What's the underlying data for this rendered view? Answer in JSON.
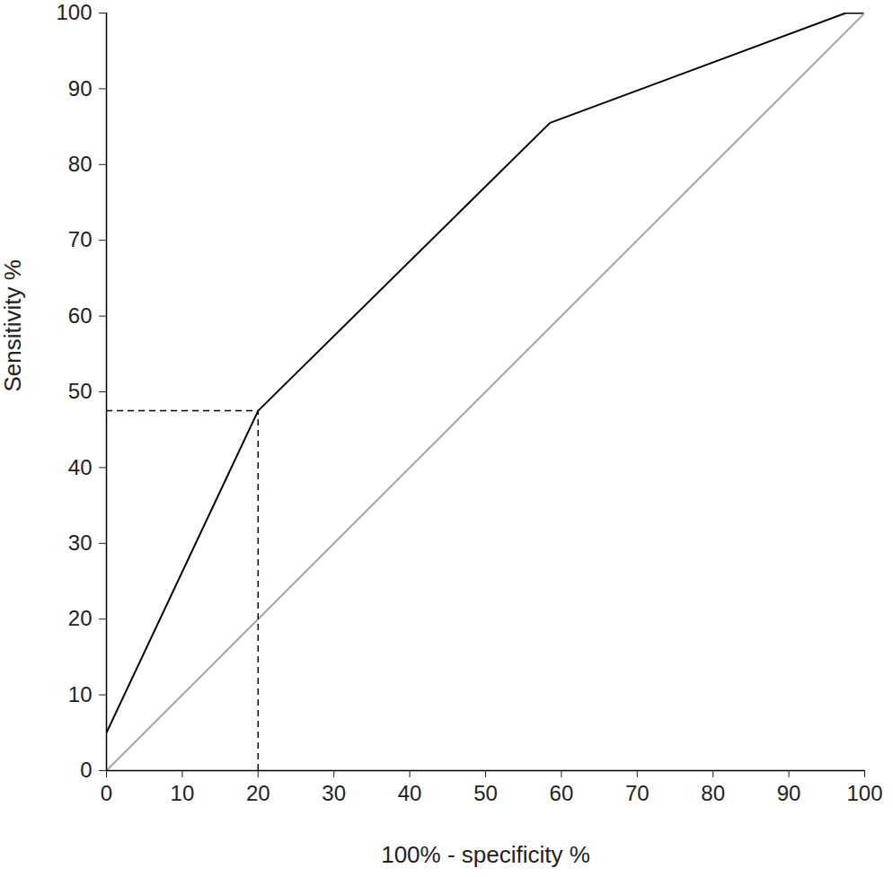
{
  "chart_data": {
    "type": "line",
    "xlabel": "100% - specificity %",
    "ylabel": "Sensitivity %",
    "xlim": [
      0,
      100
    ],
    "ylim": [
      0,
      100
    ],
    "xticks": [
      0,
      10,
      20,
      30,
      40,
      50,
      60,
      70,
      80,
      90,
      100
    ],
    "yticks": [
      0,
      10,
      20,
      30,
      40,
      50,
      60,
      70,
      80,
      90,
      100
    ],
    "grid": false,
    "series": [
      {
        "x": [
          0,
          20,
          58.5,
          97.5,
          100
        ],
        "values": [
          5,
          47.5,
          85.5,
          100,
          100
        ],
        "color": "#000000",
        "line_style": "solid"
      },
      {
        "x": [
          0,
          100
        ],
        "values": [
          0,
          100
        ],
        "color": "#a6a6a6",
        "line_style": "solid"
      }
    ],
    "reference_point": {
      "x": 20,
      "y": 47.5,
      "color": "#000000",
      "line_style": "dashed"
    }
  }
}
